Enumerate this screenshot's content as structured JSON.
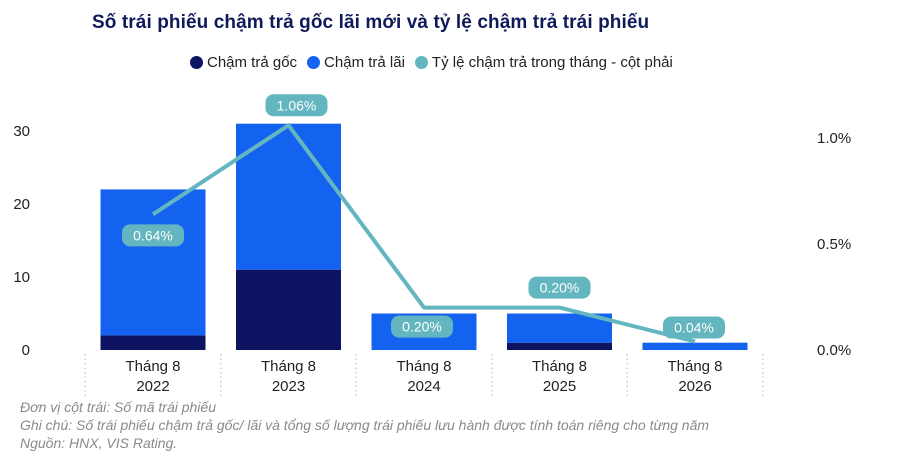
{
  "title": "Số trái phiếu chậm trả gốc lãi mới và tỷ lệ chậm trả trái phiếu",
  "legend": [
    {
      "label": "Chậm trả gốc",
      "color": "#0d1563"
    },
    {
      "label": "Chậm trả lãi",
      "color": "#1463f0"
    },
    {
      "label": "Tỷ lệ chậm trả trong tháng - cột phải",
      "color": "#63b6bf"
    }
  ],
  "notes": [
    "Đơn vị cột trái: Số mã trái phiếu",
    "Ghi chú: Số trái phiếu chậm trả gốc/ lãi và tổng số lượng trái phiếu lưu hành được tính toán riêng cho từng năm",
    "Nguồn: HNX, VIS Rating."
  ],
  "chart_data": {
    "type": "bar",
    "stacked": true,
    "categories": [
      [
        "Tháng 8",
        "2022"
      ],
      [
        "Tháng 8",
        "2023"
      ],
      [
        "Tháng 8",
        "2024"
      ],
      [
        "Tháng 8",
        "2025"
      ],
      [
        "Tháng 8",
        "2026"
      ]
    ],
    "series": [
      {
        "name": "Chậm trả gốc",
        "values": [
          2,
          11,
          0,
          1,
          0
        ],
        "color": "#0d1563",
        "axis": "left"
      },
      {
        "name": "Chậm trả lãi",
        "values": [
          20,
          20,
          5,
          4,
          1
        ],
        "color": "#1463f0",
        "axis": "left"
      },
      {
        "name": "Tỷ lệ chậm trả trong tháng - cột phải",
        "type": "line",
        "axis": "right",
        "values": [
          0.64,
          1.06,
          0.2,
          0.2,
          0.04
        ],
        "labels": [
          "0.64%",
          "1.06%",
          "0.20%",
          "0.20%",
          "0.04%"
        ],
        "color": "#63b6bf"
      }
    ],
    "y_left": {
      "ticks": [
        "0",
        "10",
        "20",
        "30"
      ],
      "tick_values": [
        0,
        10,
        20,
        30
      ],
      "ylim": [
        0,
        31
      ]
    },
    "y_right": {
      "ticks": [
        "0.0%",
        "0.5%",
        "1.0%"
      ],
      "tick_values": [
        0,
        0.5,
        1.0
      ],
      "ylim": [
        0,
        1.06
      ]
    },
    "grid": false,
    "legend_position": "top"
  }
}
